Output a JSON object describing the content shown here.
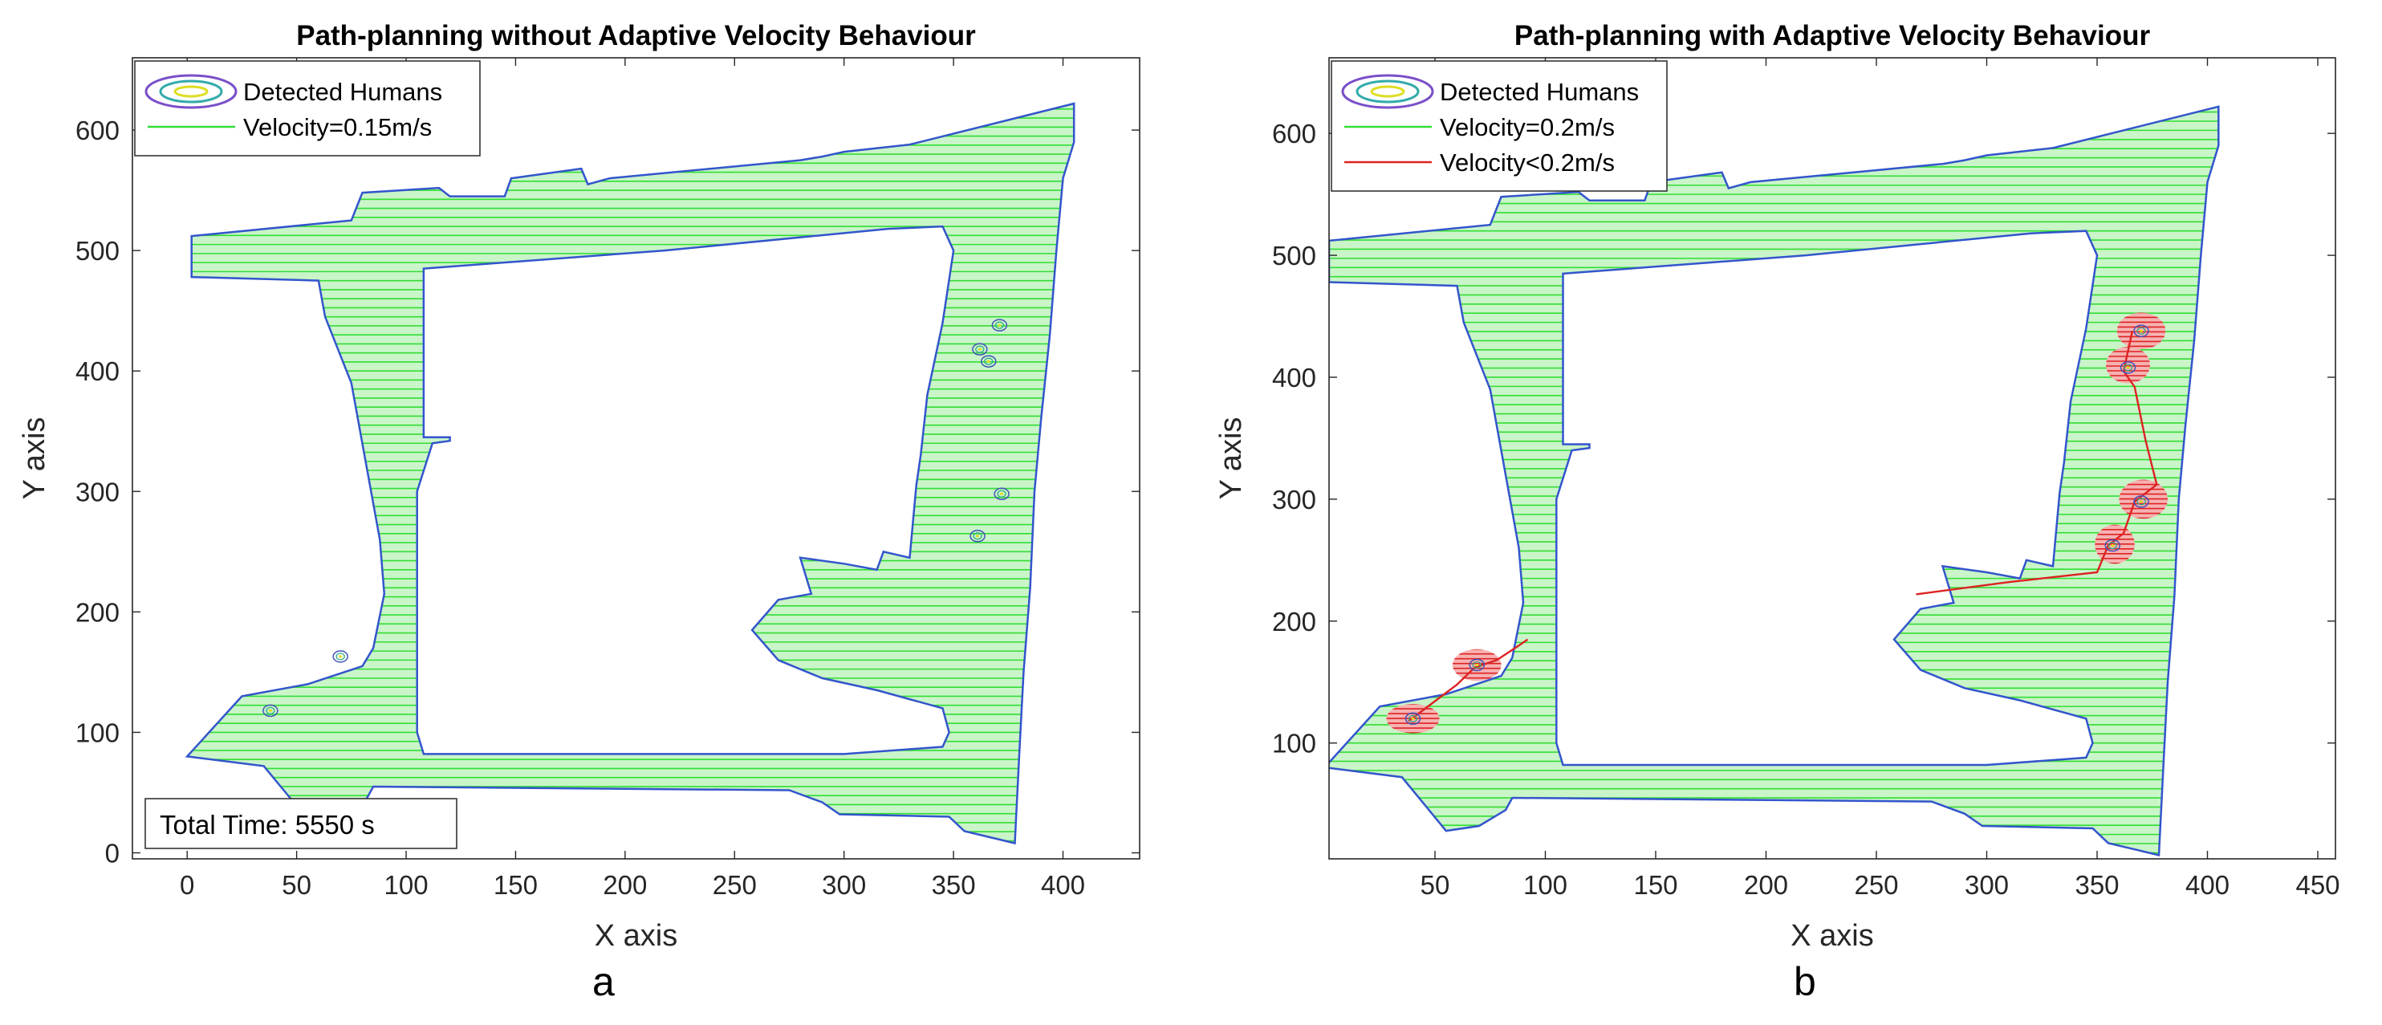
{
  "chart_data": [
    {
      "type": "line",
      "panel_label": "a",
      "title": "Path-planning without Adaptive Velocity Behaviour",
      "xlabel": "X axis",
      "ylabel": "Y axis",
      "xlim": [
        -25,
        435
      ],
      "ylim": [
        -5,
        660
      ],
      "xticks": [
        0,
        50,
        100,
        150,
        200,
        250,
        300,
        350,
        400
      ],
      "yticks": [
        0,
        100,
        200,
        300,
        400,
        500,
        600
      ],
      "grid": false,
      "legend": {
        "position": "top-left",
        "entries": [
          {
            "label": "Detected Humans",
            "marker": "contour-ellipse"
          },
          {
            "label": "Velocity=0.15m/s",
            "color": "#33dd33"
          }
        ]
      },
      "annotation": "Total Time: 5550 s",
      "series": [
        {
          "name": "Velocity=0.15m/s",
          "color": "#33dd33",
          "style": "horizontal coverage sweep lines"
        }
      ],
      "humans": [
        {
          "x": 70,
          "y": 163
        },
        {
          "x": 38,
          "y": 118
        },
        {
          "x": 362,
          "y": 418
        },
        {
          "x": 366,
          "y": 408
        },
        {
          "x": 371,
          "y": 438
        },
        {
          "x": 372,
          "y": 298
        },
        {
          "x": 361,
          "y": 263
        }
      ],
      "boundary_color": "#3355cc",
      "map_outline": [
        [
          2,
          512
        ],
        [
          75,
          525
        ],
        [
          80,
          548
        ],
        [
          115,
          552
        ],
        [
          120,
          545
        ],
        [
          145,
          545
        ],
        [
          148,
          560
        ],
        [
          180,
          568
        ],
        [
          183,
          555
        ],
        [
          193,
          560
        ],
        [
          280,
          575
        ],
        [
          290,
          578
        ],
        [
          300,
          582
        ],
        [
          330,
          588
        ],
        [
          405,
          622
        ],
        [
          405,
          590
        ],
        [
          400,
          560
        ],
        [
          397,
          500
        ],
        [
          394,
          430
        ],
        [
          390,
          360
        ],
        [
          387,
          300
        ],
        [
          385,
          220
        ],
        [
          382,
          150
        ],
        [
          380,
          80
        ],
        [
          378,
          8
        ],
        [
          355,
          18
        ],
        [
          348,
          30
        ],
        [
          298,
          32
        ],
        [
          290,
          42
        ],
        [
          275,
          52
        ],
        [
          85,
          55
        ],
        [
          82,
          45
        ],
        [
          70,
          32
        ],
        [
          55,
          28
        ],
        [
          45,
          50
        ],
        [
          35,
          72
        ],
        [
          0,
          80
        ],
        [
          25,
          130
        ],
        [
          55,
          140
        ],
        [
          80,
          155
        ],
        [
          85,
          170
        ],
        [
          90,
          215
        ],
        [
          88,
          260
        ],
        [
          82,
          320
        ],
        [
          75,
          390
        ],
        [
          63,
          445
        ],
        [
          60,
          475
        ],
        [
          2,
          478
        ]
      ],
      "hole_outline": [
        [
          108,
          485
        ],
        [
          218,
          500
        ],
        [
          320,
          518
        ],
        [
          345,
          520
        ],
        [
          350,
          500
        ],
        [
          345,
          440
        ],
        [
          338,
          380
        ],
        [
          335,
          330
        ],
        [
          333,
          305
        ],
        [
          330,
          245
        ],
        [
          318,
          250
        ],
        [
          315,
          235
        ],
        [
          300,
          240
        ],
        [
          280,
          245
        ],
        [
          285,
          215
        ],
        [
          270,
          210
        ],
        [
          258,
          185
        ],
        [
          270,
          160
        ],
        [
          290,
          145
        ],
        [
          315,
          135
        ],
        [
          345,
          120
        ],
        [
          348,
          100
        ],
        [
          345,
          88
        ],
        [
          300,
          82
        ],
        [
          108,
          82
        ],
        [
          105,
          100
        ],
        [
          105,
          300
        ],
        [
          112,
          340
        ],
        [
          120,
          342
        ],
        [
          120,
          345
        ],
        [
          108,
          345
        ],
        [
          108,
          430
        ],
        [
          108,
          485
        ]
      ],
      "sweep": {
        "y_start": 10,
        "y_end": 618,
        "step": 7.5
      }
    },
    {
      "type": "line",
      "panel_label": "b",
      "title": "Path-planning with Adaptive Velocity Behaviour",
      "xlabel": "X axis",
      "ylabel": "Y axis",
      "xlim": [
        2,
        458
      ],
      "ylim": [
        5,
        662
      ],
      "xticks": [
        50,
        100,
        150,
        200,
        250,
        300,
        350,
        400,
        450
      ],
      "yticks": [
        100,
        200,
        300,
        400,
        500,
        600
      ],
      "grid": false,
      "legend": {
        "position": "top-left",
        "entries": [
          {
            "label": "Detected Humans",
            "marker": "contour-ellipse"
          },
          {
            "label": "Velocity=0.2m/s",
            "color": "#33dd33"
          },
          {
            "label": "Velocity<0.2m/s",
            "color": "#dd2222"
          }
        ]
      },
      "series": [
        {
          "name": "Velocity=0.2m/s",
          "color": "#33dd33",
          "style": "horizontal coverage sweep lines"
        },
        {
          "name": "Velocity<0.2m/s",
          "color": "#dd2222",
          "x": [
            38,
            60,
            68,
            78,
            88,
            92
          ],
          "y": [
            118,
            148,
            162,
            168,
            180,
            185
          ]
        },
        {
          "name": "Velocity<0.2m/s",
          "color": "#dd2222",
          "x": [
            268,
            310,
            350,
            355,
            362,
            367,
            377,
            372,
            367,
            362,
            366
          ],
          "y": [
            222,
            232,
            240,
            262,
            272,
            298,
            312,
            348,
            392,
            405,
            438
          ]
        }
      ],
      "humans": [
        {
          "x": 40,
          "y": 120
        },
        {
          "x": 69,
          "y": 164
        },
        {
          "x": 357,
          "y": 262
        },
        {
          "x": 370,
          "y": 298
        },
        {
          "x": 364,
          "y": 408
        },
        {
          "x": 370,
          "y": 438
        }
      ],
      "slow_zones": [
        {
          "x": 40,
          "y": 120,
          "rx": 12,
          "ry": 12
        },
        {
          "x": 69,
          "y": 164,
          "rx": 11,
          "ry": 13
        },
        {
          "x": 358,
          "y": 263,
          "rx": 9,
          "ry": 16
        },
        {
          "x": 371,
          "y": 300,
          "rx": 11,
          "ry": 16
        },
        {
          "x": 364,
          "y": 410,
          "rx": 10,
          "ry": 15
        },
        {
          "x": 370,
          "y": 438,
          "rx": 11,
          "ry": 15
        }
      ],
      "boundary_color": "#3355cc",
      "map_outline": [
        [
          2,
          512
        ],
        [
          75,
          525
        ],
        [
          80,
          548
        ],
        [
          115,
          552
        ],
        [
          120,
          545
        ],
        [
          145,
          545
        ],
        [
          148,
          560
        ],
        [
          180,
          568
        ],
        [
          183,
          555
        ],
        [
          193,
          560
        ],
        [
          280,
          575
        ],
        [
          290,
          578
        ],
        [
          300,
          582
        ],
        [
          330,
          588
        ],
        [
          405,
          622
        ],
        [
          405,
          590
        ],
        [
          400,
          560
        ],
        [
          397,
          500
        ],
        [
          394,
          430
        ],
        [
          390,
          360
        ],
        [
          387,
          300
        ],
        [
          385,
          220
        ],
        [
          382,
          150
        ],
        [
          380,
          80
        ],
        [
          378,
          8
        ],
        [
          355,
          18
        ],
        [
          348,
          30
        ],
        [
          298,
          32
        ],
        [
          290,
          42
        ],
        [
          275,
          52
        ],
        [
          85,
          55
        ],
        [
          82,
          45
        ],
        [
          70,
          32
        ],
        [
          55,
          28
        ],
        [
          45,
          50
        ],
        [
          35,
          72
        ],
        [
          0,
          80
        ],
        [
          25,
          130
        ],
        [
          55,
          140
        ],
        [
          80,
          155
        ],
        [
          85,
          170
        ],
        [
          90,
          215
        ],
        [
          88,
          260
        ],
        [
          82,
          320
        ],
        [
          75,
          390
        ],
        [
          63,
          445
        ],
        [
          60,
          475
        ],
        [
          2,
          478
        ]
      ],
      "hole_outline": [
        [
          108,
          485
        ],
        [
          218,
          500
        ],
        [
          320,
          518
        ],
        [
          345,
          520
        ],
        [
          350,
          500
        ],
        [
          345,
          440
        ],
        [
          338,
          380
        ],
        [
          335,
          330
        ],
        [
          333,
          305
        ],
        [
          330,
          245
        ],
        [
          318,
          250
        ],
        [
          315,
          235
        ],
        [
          300,
          240
        ],
        [
          280,
          245
        ],
        [
          285,
          215
        ],
        [
          270,
          210
        ],
        [
          258,
          185
        ],
        [
          270,
          160
        ],
        [
          290,
          145
        ],
        [
          315,
          135
        ],
        [
          345,
          120
        ],
        [
          348,
          100
        ],
        [
          345,
          88
        ],
        [
          300,
          82
        ],
        [
          108,
          82
        ],
        [
          105,
          100
        ],
        [
          105,
          300
        ],
        [
          112,
          340
        ],
        [
          120,
          342
        ],
        [
          120,
          345
        ],
        [
          108,
          345
        ],
        [
          108,
          430
        ],
        [
          108,
          485
        ]
      ],
      "sweep": {
        "y_start": 10,
        "y_end": 618,
        "step": 7.5
      }
    }
  ]
}
